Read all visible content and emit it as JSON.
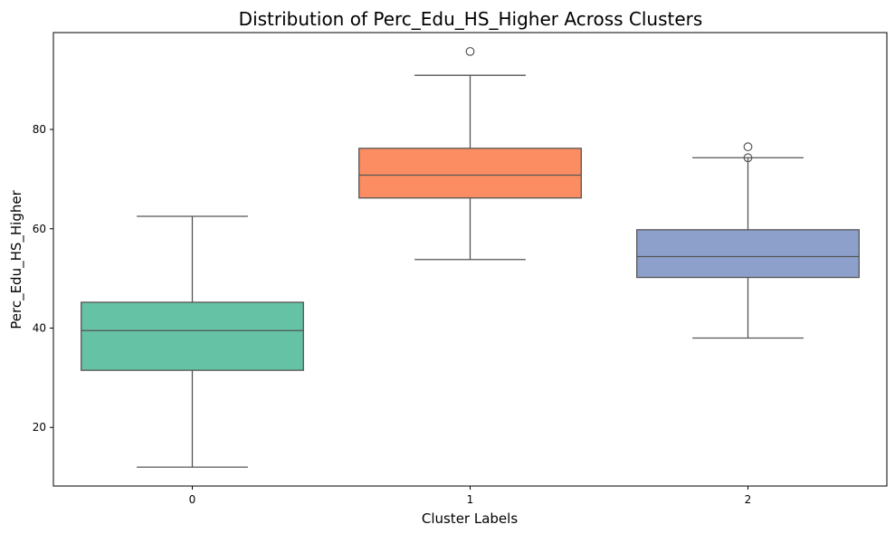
{
  "chart_data": {
    "type": "box",
    "title": "Distribution of Perc_Edu_HS_Higher Across Clusters",
    "xlabel": "Cluster Labels",
    "ylabel": "Perc_Edu_HS_Higher",
    "ylim": [
      8.2,
      99.5
    ],
    "yticks": [
      20,
      40,
      60,
      80
    ],
    "grid": false,
    "categories": [
      "0",
      "1",
      "2"
    ],
    "boxes": [
      {
        "category": "0",
        "whisker_low": 12.0,
        "q1": 31.5,
        "median": 39.5,
        "q3": 45.2,
        "whisker_high": 62.5,
        "outliers": [],
        "color": "#66c2a5"
      },
      {
        "category": "1",
        "whisker_low": 53.8,
        "q1": 66.2,
        "median": 70.8,
        "q3": 76.2,
        "whisker_high": 90.9,
        "outliers": [
          95.7
        ],
        "color": "#fc8d62"
      },
      {
        "category": "2",
        "whisker_low": 38.0,
        "q1": 50.2,
        "median": 54.4,
        "q3": 59.8,
        "whisker_high": 74.3,
        "outliers": [
          74.3,
          76.5
        ],
        "color": "#8da0cb"
      }
    ]
  }
}
